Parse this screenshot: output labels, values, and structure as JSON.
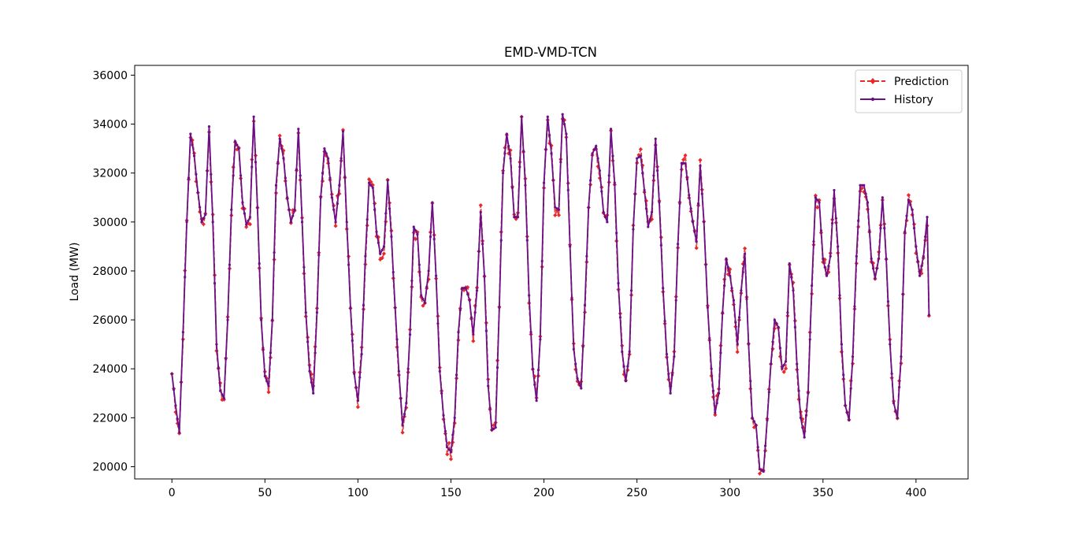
{
  "chart_data": {
    "type": "line",
    "title": "EMD-VMD-TCN",
    "xlabel": "",
    "ylabel": "Load (MW)",
    "xlim": [
      -20,
      428
    ],
    "ylim": [
      19500,
      36400
    ],
    "xticks": [
      0,
      50,
      100,
      150,
      200,
      250,
      300,
      350,
      400
    ],
    "yticks": [
      20000,
      22000,
      24000,
      26000,
      28000,
      30000,
      32000,
      34000,
      36000
    ],
    "legend_position": "top-right",
    "grid": false,
    "x_start": 0,
    "series": [
      {
        "name": "Prediction",
        "color": "#e8292a",
        "style": "dashed",
        "marker": "diamond",
        "noise_seed": 7,
        "noise_amp": 350
      },
      {
        "name": "History",
        "color": "#6b0f86",
        "style": "solid",
        "marker": "dot",
        "keypoints": [
          [
            0,
            23800
          ],
          [
            2,
            22500
          ],
          [
            4,
            21400
          ],
          [
            6,
            25500
          ],
          [
            8,
            30000
          ],
          [
            10,
            33600
          ],
          [
            12,
            32700
          ],
          [
            14,
            31200
          ],
          [
            16,
            30000
          ],
          [
            18,
            30300
          ],
          [
            20,
            33900
          ],
          [
            22,
            30000
          ],
          [
            24,
            25000
          ],
          [
            26,
            23100
          ],
          [
            28,
            22800
          ],
          [
            30,
            26000
          ],
          [
            32,
            30500
          ],
          [
            34,
            33300
          ],
          [
            36,
            33000
          ],
          [
            38,
            30800
          ],
          [
            40,
            29900
          ],
          [
            42,
            30200
          ],
          [
            44,
            34300
          ],
          [
            46,
            30600
          ],
          [
            48,
            26000
          ],
          [
            50,
            23700
          ],
          [
            52,
            23300
          ],
          [
            54,
            26000
          ],
          [
            56,
            31500
          ],
          [
            58,
            33400
          ],
          [
            60,
            32600
          ],
          [
            62,
            31000
          ],
          [
            64,
            30000
          ],
          [
            66,
            30500
          ],
          [
            68,
            33800
          ],
          [
            70,
            30000
          ],
          [
            72,
            26300
          ],
          [
            74,
            23900
          ],
          [
            76,
            23000
          ],
          [
            78,
            26300
          ],
          [
            80,
            31000
          ],
          [
            82,
            33000
          ],
          [
            84,
            32600
          ],
          [
            86,
            31000
          ],
          [
            88,
            30000
          ],
          [
            90,
            31500
          ],
          [
            92,
            33700
          ],
          [
            94,
            30000
          ],
          [
            96,
            26500
          ],
          [
            98,
            23800
          ],
          [
            100,
            22700
          ],
          [
            102,
            24600
          ],
          [
            104,
            28600
          ],
          [
            106,
            31600
          ],
          [
            108,
            31400
          ],
          [
            110,
            29600
          ],
          [
            112,
            28700
          ],
          [
            114,
            29000
          ],
          [
            116,
            31700
          ],
          [
            118,
            29400
          ],
          [
            120,
            26500
          ],
          [
            122,
            23900
          ],
          [
            124,
            21700
          ],
          [
            126,
            22600
          ],
          [
            128,
            25400
          ],
          [
            130,
            29800
          ],
          [
            132,
            29500
          ],
          [
            134,
            27000
          ],
          [
            136,
            26700
          ],
          [
            138,
            28000
          ],
          [
            140,
            30800
          ],
          [
            142,
            27800
          ],
          [
            144,
            23900
          ],
          [
            146,
            22100
          ],
          [
            148,
            20800
          ],
          [
            150,
            20600
          ],
          [
            152,
            22000
          ],
          [
            154,
            25500
          ],
          [
            156,
            27300
          ],
          [
            158,
            27300
          ],
          [
            160,
            26800
          ],
          [
            162,
            25400
          ],
          [
            164,
            27200
          ],
          [
            166,
            30400
          ],
          [
            168,
            27800
          ],
          [
            170,
            23300
          ],
          [
            172,
            21500
          ],
          [
            174,
            21600
          ],
          [
            176,
            26500
          ],
          [
            178,
            32000
          ],
          [
            180,
            33600
          ],
          [
            182,
            32600
          ],
          [
            184,
            30200
          ],
          [
            186,
            30200
          ],
          [
            188,
            34300
          ],
          [
            190,
            31500
          ],
          [
            192,
            27000
          ],
          [
            194,
            24000
          ],
          [
            196,
            22700
          ],
          [
            198,
            25200
          ],
          [
            200,
            31600
          ],
          [
            202,
            34300
          ],
          [
            204,
            32800
          ],
          [
            206,
            30600
          ],
          [
            208,
            30500
          ],
          [
            210,
            34400
          ],
          [
            212,
            33600
          ],
          [
            214,
            29000
          ],
          [
            216,
            24800
          ],
          [
            218,
            23600
          ],
          [
            220,
            23200
          ],
          [
            222,
            26600
          ],
          [
            224,
            30600
          ],
          [
            226,
            32800
          ],
          [
            228,
            33100
          ],
          [
            230,
            32100
          ],
          [
            232,
            30400
          ],
          [
            234,
            30000
          ],
          [
            236,
            33800
          ],
          [
            238,
            31600
          ],
          [
            240,
            27500
          ],
          [
            242,
            24700
          ],
          [
            244,
            23500
          ],
          [
            246,
            24700
          ],
          [
            248,
            29700
          ],
          [
            250,
            32600
          ],
          [
            252,
            32700
          ],
          [
            254,
            31300
          ],
          [
            256,
            29800
          ],
          [
            258,
            30400
          ],
          [
            260,
            33400
          ],
          [
            262,
            30800
          ],
          [
            264,
            27300
          ],
          [
            266,
            24600
          ],
          [
            268,
            23000
          ],
          [
            270,
            24500
          ],
          [
            272,
            29100
          ],
          [
            274,
            32400
          ],
          [
            276,
            32400
          ],
          [
            278,
            31100
          ],
          [
            280,
            30000
          ],
          [
            282,
            29200
          ],
          [
            284,
            32300
          ],
          [
            286,
            30000
          ],
          [
            288,
            26500
          ],
          [
            290,
            24000
          ],
          [
            292,
            22200
          ],
          [
            294,
            23000
          ],
          [
            296,
            26300
          ],
          [
            298,
            28500
          ],
          [
            300,
            27800
          ],
          [
            302,
            26800
          ],
          [
            304,
            25000
          ],
          [
            306,
            27200
          ],
          [
            308,
            28700
          ],
          [
            310,
            25000
          ],
          [
            312,
            22000
          ],
          [
            314,
            21700
          ],
          [
            316,
            19900
          ],
          [
            318,
            19800
          ],
          [
            320,
            21900
          ],
          [
            322,
            24200
          ],
          [
            324,
            26000
          ],
          [
            326,
            25700
          ],
          [
            328,
            24000
          ],
          [
            330,
            24300
          ],
          [
            332,
            28300
          ],
          [
            334,
            27200
          ],
          [
            336,
            24200
          ],
          [
            338,
            22000
          ],
          [
            340,
            21200
          ],
          [
            342,
            23000
          ],
          [
            344,
            27400
          ],
          [
            346,
            31000
          ],
          [
            348,
            30800
          ],
          [
            350,
            28500
          ],
          [
            352,
            27800
          ],
          [
            354,
            28600
          ],
          [
            356,
            31300
          ],
          [
            358,
            29000
          ],
          [
            360,
            25000
          ],
          [
            362,
            22500
          ],
          [
            364,
            21900
          ],
          [
            366,
            24500
          ],
          [
            368,
            28600
          ],
          [
            370,
            31500
          ],
          [
            372,
            31500
          ],
          [
            374,
            30800
          ],
          [
            376,
            28500
          ],
          [
            378,
            27700
          ],
          [
            380,
            28500
          ],
          [
            382,
            31000
          ],
          [
            384,
            28500
          ],
          [
            386,
            25000
          ],
          [
            388,
            22600
          ],
          [
            390,
            22000
          ],
          [
            392,
            24500
          ],
          [
            394,
            29600
          ],
          [
            396,
            30900
          ],
          [
            398,
            30500
          ],
          [
            400,
            29000
          ],
          [
            402,
            27800
          ],
          [
            404,
            28600
          ],
          [
            406,
            30200
          ],
          [
            407,
            26200
          ]
        ]
      }
    ]
  }
}
